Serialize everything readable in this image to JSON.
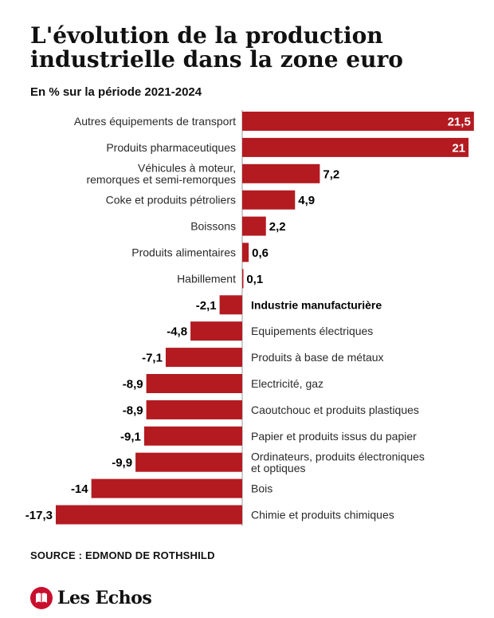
{
  "header": {
    "title": "L'évolution de la production industrielle dans la zone euro",
    "subtitle": "En % sur la période 2021-2024"
  },
  "footer": {
    "source": "SOURCE : EDMOND DE ROTHSHILD",
    "brand": "Les Echos"
  },
  "colors": {
    "bar": "#b31b21",
    "axis": "#999999"
  },
  "icons": {
    "logo": "les-echos-logo-icon"
  },
  "chart_data": {
    "type": "bar",
    "orientation": "horizontal",
    "title": "L'évolution de la production industrielle dans la zone euro",
    "subtitle": "En % sur la période 2021-2024",
    "xlim": [
      -17.3,
      21.5
    ],
    "grid": false,
    "legend": "none",
    "categories": [
      "Autres équipements de transport",
      "Produits pharmaceutiques",
      "Véhicules à moteur,\nremorques et semi-remorques",
      "Coke et produits pétroliers",
      "Boissons",
      "Produits alimentaires",
      "Habillement",
      "Industrie manufacturière",
      "Equipements électriques",
      "Produits à base de métaux",
      "Electricité, gaz",
      "Caoutchouc et produits plastiques",
      "Papier et produits issus du papier",
      "Ordinateurs, produits électroniques\net optiques",
      "Bois",
      "Chimie et produits chimiques"
    ],
    "values": [
      21.5,
      21,
      7.2,
      4.9,
      2.2,
      0.6,
      0.1,
      -2.1,
      -4.8,
      -7.1,
      -8.9,
      -8.9,
      -9.1,
      -9.9,
      -14,
      -17.3
    ],
    "value_labels": [
      "21,5",
      "21",
      "7,2",
      "4,9",
      "2,2",
      "0,6",
      "0,1",
      "-2,1",
      "-4,8",
      "-7,1",
      "-8,9",
      "-8,9",
      "-9,1",
      "-9,9",
      "-14",
      "-17,3"
    ],
    "highlight": "Industrie manufacturière"
  }
}
